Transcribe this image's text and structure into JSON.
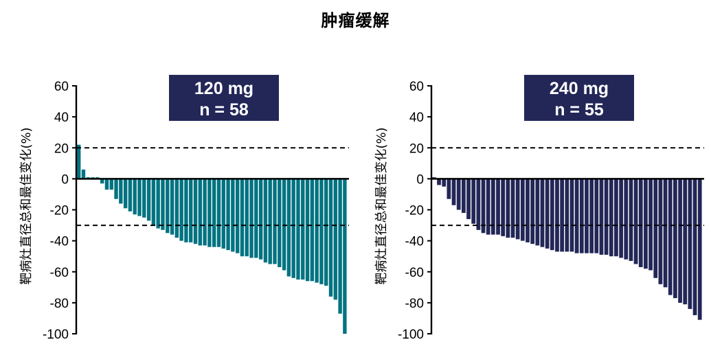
{
  "title": "肿瘤缓解",
  "chart_data": [
    {
      "type": "bar",
      "subtype": "waterfall",
      "panel_label": "120 mg",
      "n_label": "n = 58",
      "ylabel": "靶病灶直径总和最佳变化(%)",
      "ylim": [
        -100,
        60
      ],
      "yticks": [
        60,
        40,
        20,
        0,
        -20,
        -40,
        -60,
        -80,
        -100
      ],
      "ytick_labels": [
        "60",
        "40",
        "20",
        "0",
        "-20",
        "-40",
        "-60",
        "-80",
        "-100"
      ],
      "reference_lines": [
        20,
        -30
      ],
      "color": "#007381",
      "values": [
        22,
        6,
        1,
        1,
        1,
        -3,
        -7,
        -7,
        -13,
        -16,
        -19,
        -21,
        -23,
        -24,
        -25,
        -27,
        -30,
        -32,
        -33,
        -35,
        -36,
        -38,
        -40,
        -41,
        -41,
        -42,
        -43,
        -43,
        -44,
        -44,
        -44,
        -45,
        -46,
        -47,
        -48,
        -50,
        -50,
        -51,
        -51,
        -52,
        -54,
        -55,
        -55,
        -57,
        -59,
        -63,
        -64,
        -65,
        -65,
        -66,
        -66,
        -67,
        -68,
        -69,
        -76,
        -78,
        -87,
        -100
      ]
    },
    {
      "type": "bar",
      "subtype": "waterfall",
      "panel_label": "240 mg",
      "n_label": "n = 55",
      "ylabel": "靶病灶直径总和最佳变化(%)",
      "ylim": [
        -100,
        60
      ],
      "yticks": [
        60,
        40,
        20,
        0,
        -20,
        -40,
        -60,
        -80,
        -100
      ],
      "ytick_labels": [
        "60",
        "40",
        "20",
        "0",
        "-20",
        "-40",
        "-60",
        "-80",
        "-100"
      ],
      "reference_lines": [
        20,
        -30
      ],
      "color": "#232757",
      "values": [
        1,
        -4,
        -5,
        -13,
        -17,
        -20,
        -22,
        -26,
        -29,
        -33,
        -35,
        -36,
        -36,
        -36,
        -37,
        -38,
        -38,
        -39,
        -40,
        -41,
        -42,
        -43,
        -44,
        -45,
        -46,
        -47,
        -47,
        -47,
        -47,
        -48,
        -48,
        -48,
        -48,
        -48,
        -49,
        -49,
        -50,
        -50,
        -51,
        -52,
        -53,
        -55,
        -57,
        -58,
        -59,
        -64,
        -68,
        -70,
        -75,
        -77,
        -80,
        -81,
        -84,
        -88,
        -91
      ]
    }
  ]
}
